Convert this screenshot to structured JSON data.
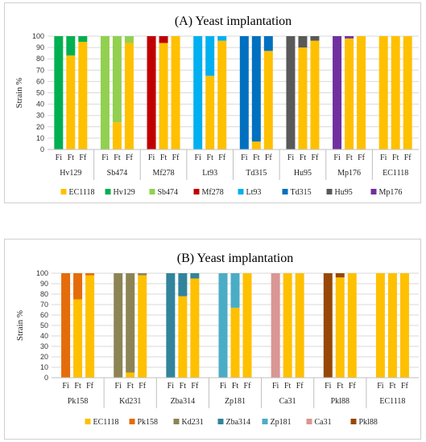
{
  "chart_data": [
    {
      "type": "bar",
      "stacked": true,
      "title": "(A) Yeast implantation",
      "ylabel": "Strain %",
      "ylim": [
        0,
        100
      ],
      "yticks": [
        0,
        10,
        20,
        30,
        40,
        50,
        60,
        70,
        80,
        90,
        100
      ],
      "grid": true,
      "legend_position": "bottom",
      "bar_labels": [
        "Fi",
        "Ft",
        "Ff"
      ],
      "groups": [
        "Hv129",
        "Sb474",
        "Mf278",
        "Lt93",
        "Td315",
        "Hu95",
        "Mp176",
        "EC1118"
      ],
      "series_colors": {
        "EC1118": "#FFC000",
        "Hv129": "#00B050",
        "Sb474": "#92D050",
        "Mf278": "#C00000",
        "Lt93": "#00B0F0",
        "Td315": "#0070C0",
        "Hu95": "#595959",
        "Mp176": "#7030A0"
      },
      "legend": [
        "EC1118",
        "Hv129",
        "Sb474",
        "Mf278",
        "Lt93",
        "Td315",
        "Hu95",
        "Mp176"
      ],
      "bars": [
        [
          {
            "Hv129": 100
          },
          {
            "EC1118": 83,
            "Hv129": 17
          },
          {
            "EC1118": 95,
            "Hv129": 5
          }
        ],
        [
          {
            "Sb474": 100
          },
          {
            "EC1118": 24,
            "Sb474": 76
          },
          {
            "EC1118": 94,
            "Sb474": 6
          }
        ],
        [
          {
            "Mf278": 100
          },
          {
            "EC1118": 94,
            "Mf278": 6
          },
          {
            "EC1118": 100
          }
        ],
        [
          {
            "Lt93": 100
          },
          {
            "EC1118": 65,
            "Lt93": 35
          },
          {
            "EC1118": 96,
            "Lt93": 4
          }
        ],
        [
          {
            "Td315": 100
          },
          {
            "EC1118": 7,
            "Td315": 93
          },
          {
            "EC1118": 87,
            "Td315": 13
          }
        ],
        [
          {
            "Hu95": 100
          },
          {
            "EC1118": 90,
            "Hu95": 10
          },
          {
            "EC1118": 96,
            "Hu95": 4
          }
        ],
        [
          {
            "Mp176": 100
          },
          {
            "EC1118": 98,
            "Mp176": 2
          },
          {
            "EC1118": 100
          }
        ],
        [
          {
            "EC1118": 100
          },
          {
            "EC1118": 100
          },
          {
            "EC1118": 100
          }
        ]
      ]
    },
    {
      "type": "bar",
      "stacked": true,
      "title": "(B) Yeast implantation",
      "ylabel": "Strain %",
      "ylim": [
        0,
        100
      ],
      "yticks": [
        0,
        10,
        20,
        30,
        40,
        50,
        60,
        70,
        80,
        90,
        100
      ],
      "grid": true,
      "legend_position": "bottom",
      "bar_labels": [
        "Fi",
        "Ft",
        "Ff"
      ],
      "groups": [
        "Pk158",
        "Kd231",
        "Zba314",
        "Zp181",
        "Ca31",
        "Pkl88",
        "EC1118"
      ],
      "series_colors": {
        "EC1118": "#FFC000",
        "Pk158": "#E46C0A",
        "Kd231": "#8C8455",
        "Zba314": "#31849B",
        "Zp181": "#4BACC6",
        "Ca31": "#D99694",
        "Pkl88": "#984806"
      },
      "legend": [
        "EC1118",
        "Pk158",
        "Kd231",
        "Zba314",
        "Zp181",
        "Ca31",
        "Pkl88"
      ],
      "bars": [
        [
          {
            "Pk158": 100
          },
          {
            "EC1118": 75,
            "Pk158": 25
          },
          {
            "EC1118": 98,
            "Pk158": 2
          }
        ],
        [
          {
            "Kd231": 100
          },
          {
            "EC1118": 5,
            "Kd231": 95
          },
          {
            "EC1118": 98,
            "Kd231": 2
          }
        ],
        [
          {
            "Zba314": 100
          },
          {
            "EC1118": 78,
            "Zba314": 22
          },
          {
            "EC1118": 95,
            "Zba314": 5
          }
        ],
        [
          {
            "Zp181": 100
          },
          {
            "EC1118": 67,
            "Zp181": 33
          },
          {
            "EC1118": 100
          }
        ],
        [
          {
            "Ca31": 100
          },
          {
            "EC1118": 100
          },
          {
            "EC1118": 100
          }
        ],
        [
          {
            "Pkl88": 100
          },
          {
            "EC1118": 96,
            "Pkl88": 4
          },
          {
            "EC1118": 100
          }
        ],
        [
          {
            "EC1118": 100
          },
          {
            "EC1118": 100
          },
          {
            "EC1118": 100
          }
        ]
      ]
    }
  ]
}
